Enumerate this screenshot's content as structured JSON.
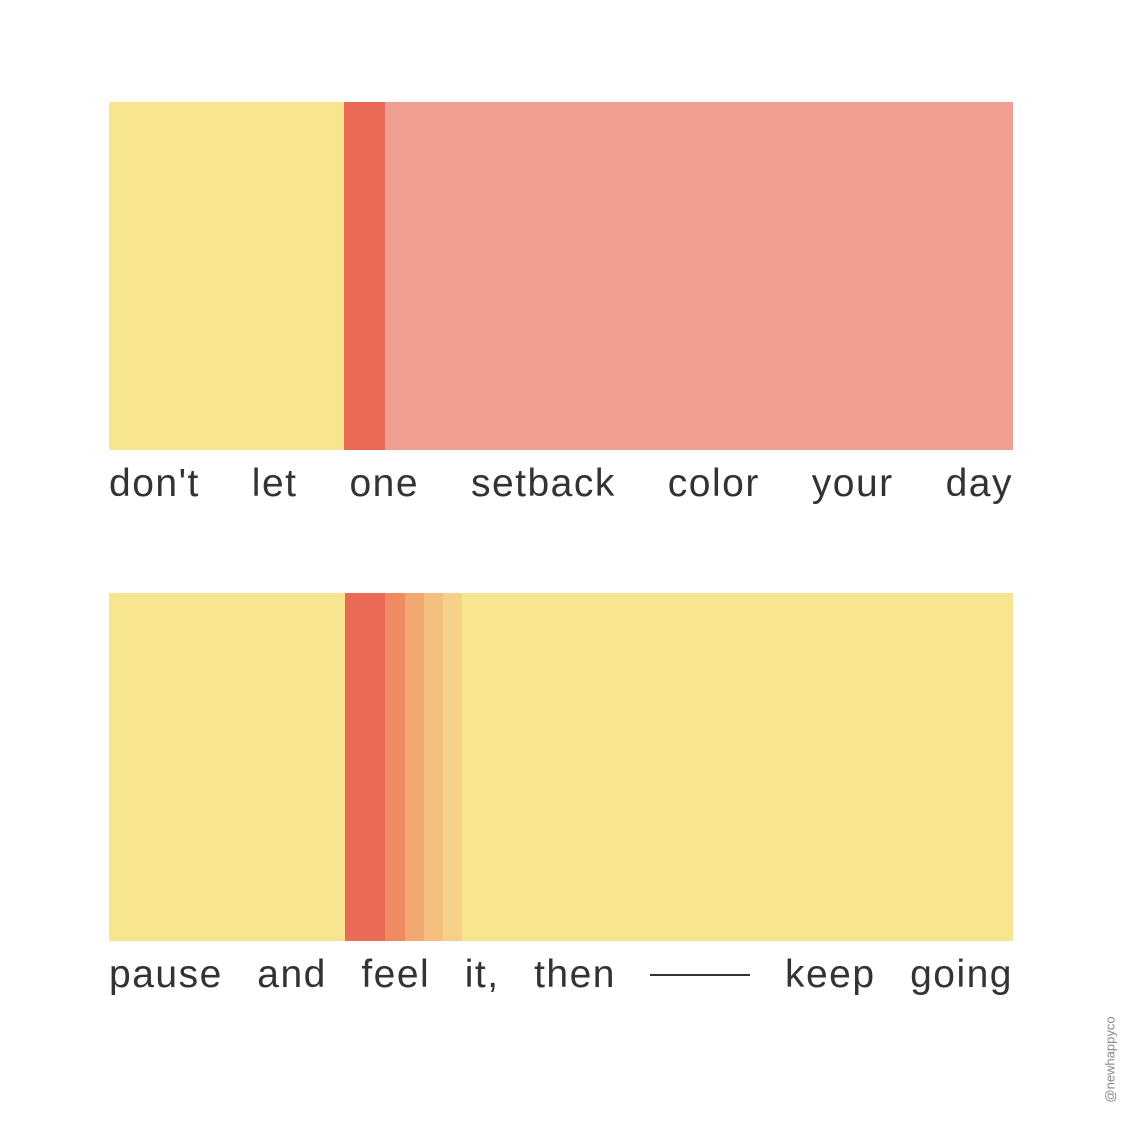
{
  "captions": [
    {
      "words": [
        "don't",
        "let",
        "one",
        "setback",
        "color",
        "your",
        "day"
      ]
    },
    {
      "words": [
        "pause",
        "and",
        "feel",
        "it,",
        "then",
        "keep",
        "going"
      ]
    }
  ],
  "credit": "@newhappyco"
}
